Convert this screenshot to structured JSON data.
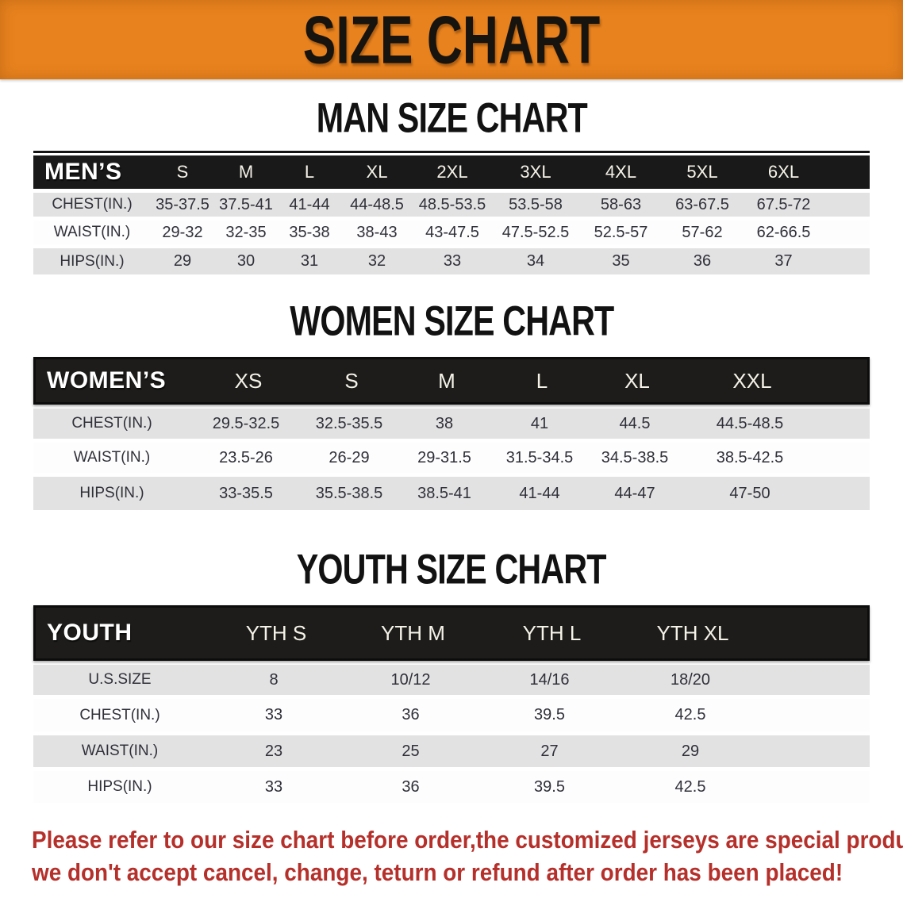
{
  "banner": {
    "title": "SIZE CHART",
    "bg_color": "#E8821E",
    "text_color": "#17130e"
  },
  "sections": [
    {
      "heading": "MAN SIZE CHART",
      "table": {
        "label": "MEN’S",
        "sizes": [
          "S",
          "M",
          "L",
          "XL",
          "2XL",
          "3XL",
          "4XL",
          "5XL",
          "6XL"
        ],
        "rows": [
          {
            "label": "CHEST(IN.)",
            "values": [
              "35-37.5",
              "37.5-41",
              "41-44",
              "44-48.5",
              "48.5-53.5",
              "53.5-58",
              "58-63",
              "63-67.5",
              "67.5-72"
            ]
          },
          {
            "label": "WAIST(IN.)",
            "values": [
              "29-32",
              "32-35",
              "35-38",
              "38-43",
              "43-47.5",
              "47.5-52.5",
              "52.5-57",
              "57-62",
              "62-66.5"
            ]
          },
          {
            "label": "HIPS(IN.)",
            "values": [
              "29",
              "30",
              "31",
              "32",
              "33",
              "34",
              "35",
              "36",
              "37"
            ]
          }
        ]
      }
    },
    {
      "heading": "WOMEN SIZE CHART",
      "table": {
        "label": "WOMEN’S",
        "sizes": [
          "XS",
          "S",
          "M",
          "L",
          "XL",
          "XXL"
        ],
        "rows": [
          {
            "label": "CHEST(IN.)",
            "values": [
              "29.5-32.5",
              "32.5-35.5",
              "38",
              "41",
              "44.5",
              "44.5-48.5"
            ]
          },
          {
            "label": "WAIST(IN.)",
            "values": [
              "23.5-26",
              "26-29",
              "29-31.5",
              "31.5-34.5",
              "34.5-38.5",
              "38.5-42.5"
            ]
          },
          {
            "label": "HIPS(IN.)",
            "values": [
              "33-35.5",
              "35.5-38.5",
              "38.5-41",
              "41-44",
              "44-47",
              "47-50"
            ]
          }
        ]
      }
    },
    {
      "heading": "YOUTH SIZE CHART",
      "table": {
        "label": "YOUTH",
        "sizes": [
          "YTH S",
          "YTH M",
          "YTH L",
          "YTH XL"
        ],
        "rows": [
          {
            "label": "U.S.SIZE",
            "values": [
              "8",
              "10/12",
              "14/16",
              "18/20"
            ]
          },
          {
            "label": "CHEST(IN.)",
            "values": [
              "33",
              "36",
              "39.5",
              "42.5"
            ]
          },
          {
            "label": "WAIST(IN.)",
            "values": [
              "23",
              "25",
              "27",
              "29"
            ]
          },
          {
            "label": "HIPS(IN.)",
            "values": [
              "33",
              "36",
              "39.5",
              "42.5"
            ]
          }
        ]
      }
    }
  ],
  "disclaimer": {
    "lines": [
      "Please refer to our size chart before order,the customized jerseys are special products,",
      "we don't accept cancel, change, teturn or refund after order has been placed!"
    ],
    "color": "#B5302B"
  }
}
